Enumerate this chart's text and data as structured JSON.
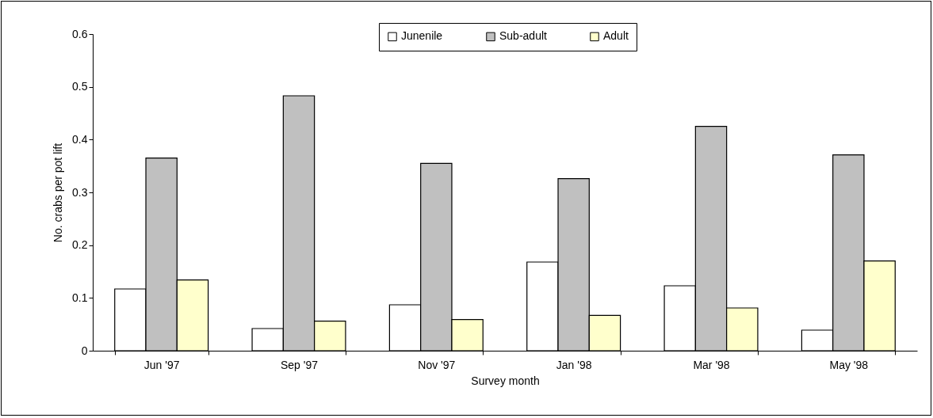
{
  "chart_data": {
    "type": "bar",
    "xlabel": "Survey month",
    "ylabel": "No. crabs per pot lift",
    "categories": [
      "Jun '97",
      "Sep '97",
      "Nov '97",
      "Jan '98",
      "Mar '98",
      "May '98"
    ],
    "series": [
      {
        "name": "Junenile",
        "color": "#ffffff",
        "values": [
          0.117,
          0.042,
          0.087,
          0.168,
          0.123,
          0.039
        ]
      },
      {
        "name": "Sub-adult",
        "color": "#c0c0c0",
        "values": [
          0.365,
          0.483,
          0.355,
          0.326,
          0.425,
          0.371
        ]
      },
      {
        "name": "Adult",
        "color": "#ffffcc",
        "values": [
          0.134,
          0.056,
          0.059,
          0.067,
          0.081,
          0.17
        ]
      }
    ],
    "ylim": [
      0,
      0.6
    ],
    "yticks": [
      0,
      0.1,
      0.2,
      0.3,
      0.4,
      0.5,
      0.6
    ],
    "grid": false,
    "legend": "top"
  }
}
